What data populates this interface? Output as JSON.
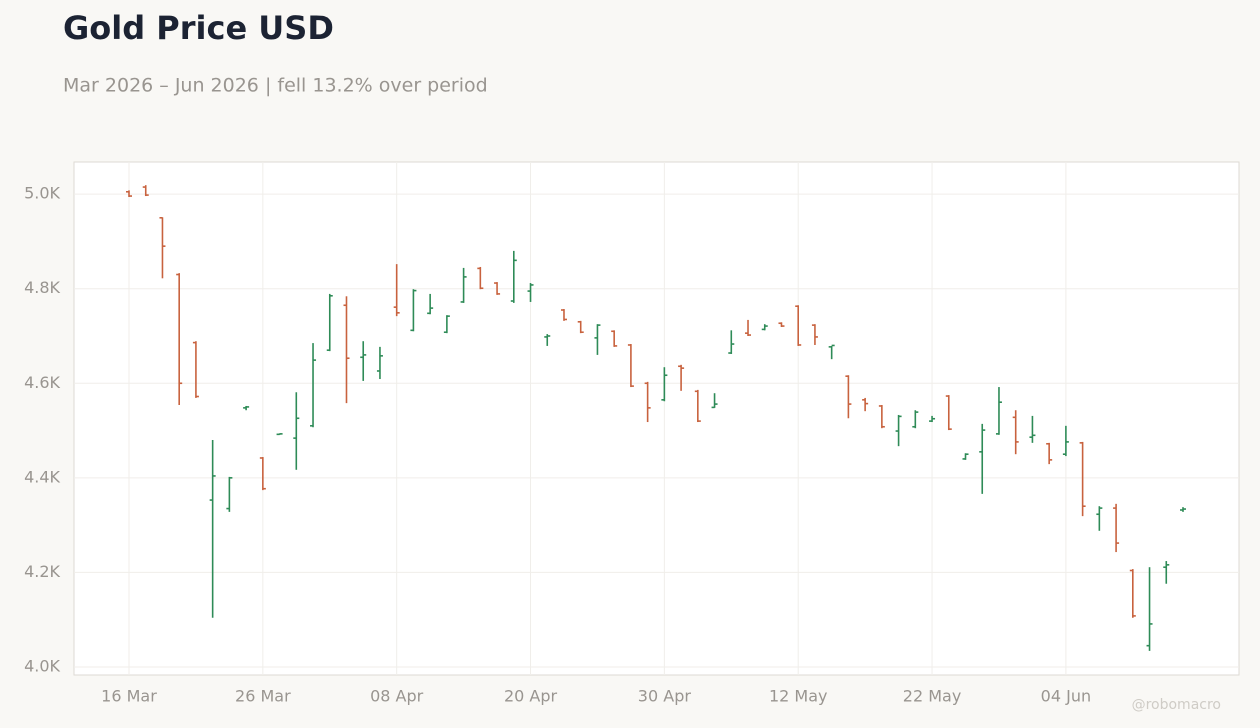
{
  "chart_data": {
    "type": "ohlc",
    "title": "Gold Price USD",
    "subtitle": "Mar 2026 – Jun 2026 | fell 13.2% over period",
    "watermark": "@robomacro",
    "categories": [
      "16 Mar",
      null,
      null,
      null,
      null,
      null,
      null,
      null,
      "26 Mar",
      null,
      null,
      null,
      null,
      null,
      null,
      null,
      "08 Apr",
      null,
      null,
      null,
      null,
      null,
      null,
      null,
      "20 Apr",
      null,
      null,
      null,
      null,
      null,
      null,
      null,
      "30 Apr",
      null,
      null,
      null,
      null,
      null,
      null,
      null,
      "12 May",
      null,
      null,
      null,
      null,
      null,
      null,
      null,
      "22 May",
      null,
      null,
      null,
      null,
      null,
      null,
      null,
      "04 Jun",
      null,
      null,
      null,
      null,
      null,
      null,
      null
    ],
    "open": [
      5005,
      5015,
      4950,
      4830,
      4686,
      4353,
      4335,
      4548,
      4442,
      4492,
      4484,
      4510,
      4670,
      4765,
      4655,
      4626,
      4761,
      4712,
      4748,
      4708,
      4772,
      4843,
      4812,
      4774,
      4795,
      4698,
      4755,
      4730,
      4696,
      4710,
      4681,
      4600,
      4565,
      4636,
      4583,
      4549,
      4664,
      4706,
      4714,
      4727,
      4763,
      4723,
      4677,
      4615,
      4565,
      4552,
      4499,
      4508,
      4520,
      4573,
      4440,
      4455,
      4493,
      4528,
      4486,
      4472,
      4450,
      4474,
      4323,
      4336,
      4204,
      4045,
      4211,
      4332
    ],
    "high": [
      5008,
      5019,
      4951,
      4833,
      4689,
      4480,
      4402,
      4552,
      4444,
      4494,
      4581,
      4685,
      4789,
      4784,
      4689,
      4677,
      4852,
      4799,
      4789,
      4744,
      4844,
      4846,
      4814,
      4880,
      4812,
      4704,
      4757,
      4732,
      4725,
      4712,
      4683,
      4603,
      4634,
      4639,
      4586,
      4579,
      4712,
      4734,
      4725,
      4729,
      4765,
      4725,
      4679,
      4617,
      4569,
      4554,
      4533,
      4543,
      4531,
      4575,
      4452,
      4514,
      4592,
      4543,
      4531,
      4474,
      4510,
      4476,
      4340,
      4345,
      4207,
      4211,
      4224,
      4338
    ],
    "low": [
      4994,
      4996,
      4822,
      4554,
      4569,
      4104,
      4328,
      4543,
      4374,
      4491,
      4417,
      4507,
      4668,
      4558,
      4605,
      4609,
      4742,
      4710,
      4746,
      4706,
      4770,
      4799,
      4787,
      4770,
      4772,
      4679,
      4732,
      4706,
      4660,
      4677,
      4592,
      4518,
      4562,
      4584,
      4518,
      4548,
      4662,
      4700,
      4712,
      4719,
      4679,
      4681,
      4651,
      4526,
      4541,
      4505,
      4467,
      4505,
      4518,
      4501,
      4438,
      4366,
      4491,
      4450,
      4474,
      4429,
      4446,
      4319,
      4288,
      4243,
      4104,
      4034,
      4176,
      4328
    ],
    "close": [
      4996,
      4998,
      4890,
      4600,
      4572,
      4404,
      4400,
      4550,
      4377,
      4493,
      4526,
      4649,
      4785,
      4653,
      4660,
      4658,
      4749,
      4796,
      4759,
      4742,
      4825,
      4801,
      4789,
      4860,
      4808,
      4700,
      4735,
      4708,
      4723,
      4679,
      4594,
      4548,
      4617,
      4632,
      4520,
      4556,
      4683,
      4702,
      4721,
      4721,
      4681,
      4698,
      4680,
      4556,
      4557,
      4508,
      4530,
      4539,
      4525,
      4503,
      4450,
      4501,
      4560,
      4476,
      4490,
      4438,
      4476,
      4340,
      4336,
      4262,
      4108,
      4091,
      4216,
      4334
    ],
    "up_color": "#2e8b57",
    "down_color": "#c8623e",
    "ylim": [
      3983,
      5068
    ],
    "yticks": [
      {
        "value": 4000,
        "label": "4.0K"
      },
      {
        "value": 4200,
        "label": "4.2K"
      },
      {
        "value": 4400,
        "label": "4.4K"
      },
      {
        "value": 4600,
        "label": "4.6K"
      },
      {
        "value": 4800,
        "label": "4.8K"
      },
      {
        "value": 5000,
        "label": "5.0K"
      }
    ],
    "grid": true
  }
}
